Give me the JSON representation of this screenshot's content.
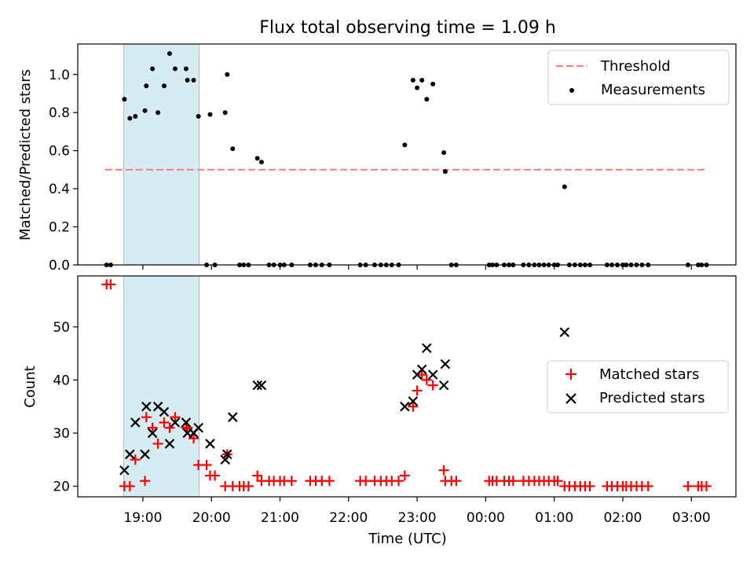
{
  "title": "Flux total observing time = 1.09 h",
  "chart_data": [
    {
      "type": "scatter",
      "panel": "top",
      "ylabel": "Matched/Predicted stars",
      "xlabel": "",
      "xlim": [
        18.05,
        27.65
      ],
      "ylim": [
        0,
        1.16
      ],
      "yticks": [
        0.0,
        0.2,
        0.4,
        0.6,
        0.8,
        1.0
      ],
      "ytick_labels": [
        "0.0",
        "0.2",
        "0.4",
        "0.6",
        "0.8",
        "1.0"
      ],
      "shaded_span": [
        18.72,
        19.82
      ],
      "legend": {
        "position": "top-right",
        "entries": [
          "Threshold",
          "Measurements"
        ]
      },
      "threshold": {
        "name": "Threshold",
        "y": 0.5,
        "x": [
          18.45,
          27.2
        ],
        "color": "#ff7f7f"
      },
      "series": [
        {
          "name": "Measurements",
          "color": "#000000",
          "points": [
            [
              18.47,
              0
            ],
            [
              18.53,
              0
            ],
            [
              18.73,
              0.87
            ],
            [
              18.81,
              0.77
            ],
            [
              18.89,
              0.78
            ],
            [
              19.03,
              0.81
            ],
            [
              19.05,
              0.94
            ],
            [
              19.14,
              1.03
            ],
            [
              19.22,
              0.8
            ],
            [
              19.31,
              0.94
            ],
            [
              19.39,
              1.11
            ],
            [
              19.47,
              1.03
            ],
            [
              19.63,
              1.03
            ],
            [
              19.65,
              0.97
            ],
            [
              19.74,
              0.97
            ],
            [
              19.81,
              0.78
            ],
            [
              19.93,
              0
            ],
            [
              19.98,
              0.79
            ],
            [
              20.05,
              0
            ],
            [
              20.2,
              0.8
            ],
            [
              20.23,
              1.0
            ],
            [
              20.31,
              0.61
            ],
            [
              20.41,
              0
            ],
            [
              20.47,
              0
            ],
            [
              20.54,
              0
            ],
            [
              20.67,
              0.56
            ],
            [
              20.73,
              0.54
            ],
            [
              20.84,
              0
            ],
            [
              20.91,
              0
            ],
            [
              21.0,
              0
            ],
            [
              21.06,
              0
            ],
            [
              21.17,
              0
            ],
            [
              21.44,
              0
            ],
            [
              21.52,
              0
            ],
            [
              21.61,
              0
            ],
            [
              21.72,
              0
            ],
            [
              22.17,
              0
            ],
            [
              22.25,
              0
            ],
            [
              22.38,
              0
            ],
            [
              22.47,
              0
            ],
            [
              22.55,
              0
            ],
            [
              22.63,
              0
            ],
            [
              22.73,
              0
            ],
            [
              22.82,
              0.63
            ],
            [
              22.94,
              0.97
            ],
            [
              23.0,
              0.93
            ],
            [
              23.07,
              0.97
            ],
            [
              23.14,
              0.87
            ],
            [
              23.23,
              0.95
            ],
            [
              23.39,
              0.59
            ],
            [
              23.41,
              0.49
            ],
            [
              23.5,
              0
            ],
            [
              23.57,
              0
            ],
            [
              24.05,
              0
            ],
            [
              24.1,
              0
            ],
            [
              24.16,
              0
            ],
            [
              24.27,
              0
            ],
            [
              24.34,
              0
            ],
            [
              24.4,
              0
            ],
            [
              24.55,
              0
            ],
            [
              24.63,
              0
            ],
            [
              24.71,
              0
            ],
            [
              24.78,
              0
            ],
            [
              24.85,
              0
            ],
            [
              24.92,
              0
            ],
            [
              25.0,
              0
            ],
            [
              25.05,
              0
            ],
            [
              25.15,
              0.41
            ],
            [
              25.22,
              0
            ],
            [
              25.3,
              0
            ],
            [
              25.38,
              0
            ],
            [
              25.45,
              0
            ],
            [
              25.52,
              0
            ],
            [
              25.77,
              0
            ],
            [
              25.84,
              0
            ],
            [
              25.92,
              0
            ],
            [
              26.0,
              0
            ],
            [
              26.05,
              0
            ],
            [
              26.12,
              0
            ],
            [
              26.2,
              0
            ],
            [
              26.28,
              0
            ],
            [
              26.37,
              0
            ],
            [
              26.95,
              0
            ],
            [
              27.1,
              0
            ],
            [
              27.15,
              0
            ],
            [
              27.22,
              0
            ]
          ]
        }
      ]
    },
    {
      "type": "scatter",
      "panel": "bottom",
      "ylabel": "Count",
      "xlabel": "Time (UTC)",
      "xlim": [
        18.05,
        27.65
      ],
      "ylim": [
        18.0,
        59.6
      ],
      "yticks": [
        20,
        30,
        40,
        50
      ],
      "ytick_labels": [
        "20",
        "30",
        "40",
        "50"
      ],
      "xticks": [
        19,
        20,
        21,
        22,
        23,
        24,
        25,
        26,
        27
      ],
      "xtick_labels": [
        "19:00",
        "20:00",
        "21:00",
        "22:00",
        "23:00",
        "00:00",
        "01:00",
        "02:00",
        "03:00"
      ],
      "shaded_span": [
        18.72,
        19.82
      ],
      "legend": {
        "position": "center-right",
        "entries": [
          "Matched stars",
          "Predicted stars"
        ]
      },
      "series": [
        {
          "name": "Matched stars",
          "marker": "plus",
          "color": "#ff0000",
          "points": [
            [
              18.47,
              58
            ],
            [
              18.53,
              58
            ],
            [
              18.73,
              20
            ],
            [
              18.81,
              20
            ],
            [
              18.89,
              25
            ],
            [
              19.03,
              21
            ],
            [
              19.05,
              33
            ],
            [
              19.14,
              31
            ],
            [
              19.22,
              28
            ],
            [
              19.31,
              32
            ],
            [
              19.39,
              31
            ],
            [
              19.47,
              33
            ],
            [
              19.63,
              31
            ],
            [
              19.65,
              31
            ],
            [
              19.74,
              29
            ],
            [
              19.81,
              24
            ],
            [
              19.93,
              24
            ],
            [
              19.98,
              22
            ],
            [
              20.05,
              22
            ],
            [
              20.2,
              20
            ],
            [
              20.23,
              26
            ],
            [
              20.31,
              20
            ],
            [
              20.41,
              20
            ],
            [
              20.47,
              20
            ],
            [
              20.54,
              20
            ],
            [
              20.67,
              22
            ],
            [
              20.73,
              21
            ],
            [
              20.84,
              21
            ],
            [
              20.91,
              21
            ],
            [
              21.0,
              21
            ],
            [
              21.06,
              21
            ],
            [
              21.17,
              21
            ],
            [
              21.44,
              21
            ],
            [
              21.52,
              21
            ],
            [
              21.61,
              21
            ],
            [
              21.72,
              21
            ],
            [
              22.17,
              21
            ],
            [
              22.25,
              21
            ],
            [
              22.38,
              21
            ],
            [
              22.47,
              21
            ],
            [
              22.55,
              21
            ],
            [
              22.63,
              21
            ],
            [
              22.73,
              21
            ],
            [
              22.82,
              22
            ],
            [
              22.94,
              35
            ],
            [
              23.0,
              38
            ],
            [
              23.07,
              41
            ],
            [
              23.14,
              40
            ],
            [
              23.23,
              39
            ],
            [
              23.39,
              23
            ],
            [
              23.41,
              21
            ],
            [
              23.5,
              21
            ],
            [
              23.57,
              21
            ],
            [
              24.05,
              21
            ],
            [
              24.1,
              21
            ],
            [
              24.16,
              21
            ],
            [
              24.27,
              21
            ],
            [
              24.34,
              21
            ],
            [
              24.4,
              21
            ],
            [
              24.55,
              21
            ],
            [
              24.63,
              21
            ],
            [
              24.71,
              21
            ],
            [
              24.78,
              21
            ],
            [
              24.85,
              21
            ],
            [
              24.92,
              21
            ],
            [
              25.0,
              21
            ],
            [
              25.05,
              21
            ],
            [
              25.15,
              20
            ],
            [
              25.22,
              20
            ],
            [
              25.3,
              20
            ],
            [
              25.38,
              20
            ],
            [
              25.45,
              20
            ],
            [
              25.52,
              20
            ],
            [
              25.77,
              20
            ],
            [
              25.84,
              20
            ],
            [
              25.92,
              20
            ],
            [
              26.0,
              20
            ],
            [
              26.05,
              20
            ],
            [
              26.12,
              20
            ],
            [
              26.2,
              20
            ],
            [
              26.28,
              20
            ],
            [
              26.37,
              20
            ],
            [
              26.95,
              20
            ],
            [
              27.1,
              20
            ],
            [
              27.15,
              20
            ],
            [
              27.22,
              20
            ]
          ]
        },
        {
          "name": "Predicted stars",
          "marker": "x",
          "color": "#000000",
          "points": [
            [
              18.73,
              23
            ],
            [
              18.81,
              26
            ],
            [
              18.89,
              32
            ],
            [
              19.03,
              26
            ],
            [
              19.05,
              35
            ],
            [
              19.14,
              30
            ],
            [
              19.22,
              35
            ],
            [
              19.31,
              34
            ],
            [
              19.39,
              28
            ],
            [
              19.47,
              32
            ],
            [
              19.63,
              32
            ],
            [
              19.65,
              30
            ],
            [
              19.74,
              30
            ],
            [
              19.81,
              31
            ],
            [
              19.98,
              28
            ],
            [
              20.2,
              25
            ],
            [
              20.23,
              26
            ],
            [
              20.31,
              33
            ],
            [
              20.67,
              39
            ],
            [
              20.73,
              39
            ],
            [
              22.82,
              35
            ],
            [
              22.94,
              36
            ],
            [
              23.0,
              41
            ],
            [
              23.07,
              42
            ],
            [
              23.14,
              46
            ],
            [
              23.23,
              41
            ],
            [
              23.39,
              39
            ],
            [
              23.41,
              43
            ],
            [
              25.15,
              49
            ]
          ]
        }
      ]
    }
  ]
}
